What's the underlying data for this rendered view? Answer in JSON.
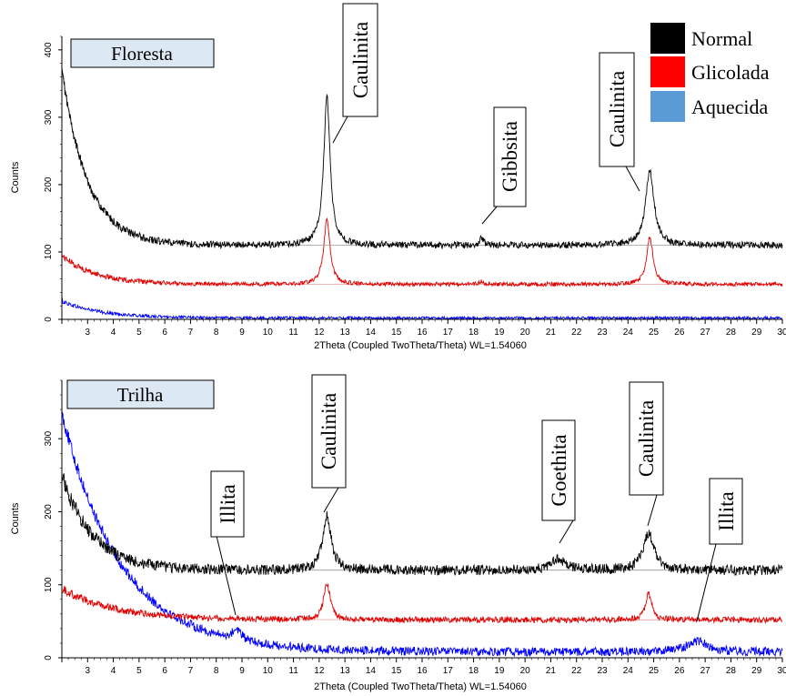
{
  "chart_data": [
    {
      "type": "line",
      "title": "Floresta",
      "xlabel": "2Theta (Coupled TwoTheta/Theta) WL=1.54060",
      "ylabel": "Counts",
      "xlim": [
        2,
        30
      ],
      "ylim": [
        0,
        420
      ],
      "x_ticks": [
        3,
        4,
        5,
        6,
        7,
        8,
        9,
        10,
        11,
        12,
        13,
        14,
        15,
        16,
        17,
        18,
        19,
        20,
        21,
        22,
        23,
        24,
        25,
        26,
        27,
        28,
        29,
        30
      ],
      "y_ticks": [
        0,
        100,
        200,
        300,
        400
      ],
      "legend": [
        {
          "label": "Normal",
          "color": "#000000"
        },
        {
          "label": "Glicolada",
          "color": "#ff0000"
        },
        {
          "label": "Aquecida",
          "color": "#5b9bd5"
        }
      ],
      "series": [
        {
          "name": "Normal",
          "color": "#000000",
          "baseline": 110,
          "start": 370,
          "decay": 1.0,
          "noise": 5,
          "peaks": [
            [
              12.3,
              220,
              0.15
            ],
            [
              18.3,
              12,
              0.08
            ],
            [
              24.85,
              110,
              0.2
            ]
          ]
        },
        {
          "name": "Glicolada",
          "color": "#e00000",
          "baseline": 52,
          "start": 95,
          "decay": 1.3,
          "noise": 3,
          "peaks": [
            [
              12.3,
              95,
              0.15
            ],
            [
              18.3,
              5,
              0.08
            ],
            [
              24.85,
              70,
              0.15
            ]
          ]
        },
        {
          "name": "Aquecida",
          "color": "#0000ff",
          "baseline": 2,
          "start": 27,
          "decay": 1.5,
          "noise": 2,
          "peaks": []
        }
      ],
      "annotations": [
        {
          "text": "Caulinita",
          "x": 12.3
        },
        {
          "text": "Gibbsita",
          "x": 18.3
        },
        {
          "text": "Caulinita",
          "x": 24.7
        }
      ]
    },
    {
      "type": "line",
      "title": "Trilha",
      "xlabel": "2Theta (Coupled TwoTheta/Theta) WL=1.54060",
      "ylabel": "Counts",
      "xlim": [
        2,
        30
      ],
      "ylim": [
        0,
        380
      ],
      "x_ticks": [
        3,
        4,
        5,
        6,
        7,
        8,
        9,
        10,
        11,
        12,
        13,
        14,
        15,
        16,
        17,
        18,
        19,
        20,
        21,
        22,
        23,
        24,
        25,
        26,
        27,
        28,
        29,
        30
      ],
      "y_ticks": [
        0,
        100,
        200,
        300
      ],
      "series": [
        {
          "name": "Normal",
          "color": "#000000",
          "baseline": 120,
          "start": 250,
          "decay": 1.2,
          "noise": 7,
          "peaks": [
            [
              12.3,
              75,
              0.2
            ],
            [
              21.3,
              15,
              0.35
            ],
            [
              24.8,
              50,
              0.25
            ]
          ]
        },
        {
          "name": "Glicolada",
          "color": "#e00000",
          "baseline": 52,
          "start": 95,
          "decay": 2.0,
          "noise": 4,
          "peaks": [
            [
              12.3,
              50,
              0.15
            ],
            [
              24.8,
              35,
              0.15
            ]
          ]
        },
        {
          "name": "Aquecida",
          "color": "#0000ff",
          "baseline": 8,
          "start": 335,
          "decay": 2.3,
          "noise": 6,
          "peaks": [
            [
              8.8,
              15,
              0.2
            ],
            [
              26.7,
              15,
              0.5
            ]
          ]
        }
      ],
      "annotations": [
        {
          "text": "Illita",
          "x": 8.7
        },
        {
          "text": "Caulinita",
          "x": 12.3
        },
        {
          "text": "Goethita",
          "x": 21.3
        },
        {
          "text": "Caulinita",
          "x": 24.8
        },
        {
          "text": "Illita",
          "x": 26.7
        }
      ]
    }
  ]
}
